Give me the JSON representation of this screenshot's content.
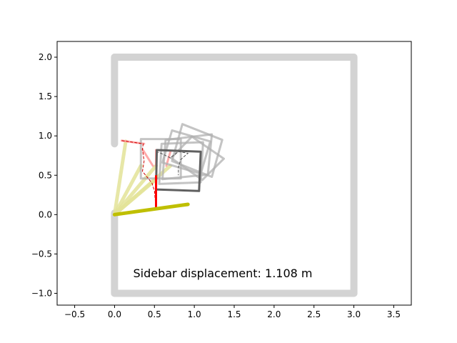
{
  "chart_data": {
    "type": "line",
    "title": "",
    "xlabel": "",
    "ylabel": "",
    "xlim": [
      -0.72,
      3.72
    ],
    "ylim": [
      -1.15,
      2.2
    ],
    "grid": false,
    "x_ticks": [
      -0.5,
      0.0,
      0.5,
      1.0,
      1.5,
      2.0,
      2.5,
      3.0,
      3.5
    ],
    "x_tick_labels": [
      "−0.5",
      "0.0",
      "0.5",
      "1.0",
      "1.5",
      "2.0",
      "2.5",
      "3.0",
      "3.5"
    ],
    "y_ticks": [
      -1.0,
      -0.5,
      0.0,
      0.5,
      1.0,
      1.5,
      2.0
    ],
    "y_tick_labels": [
      "−1.0",
      "−0.5",
      "0.0",
      "0.5",
      "1.0",
      "1.5",
      "2.0"
    ],
    "annotation": "Sidebar displacement: 1.108 m",
    "colors": {
      "wall": "#d3d3d3",
      "box_current": "#606060",
      "box_ghost": "#b0b0b0",
      "boom_current": "#bfbf00",
      "boom_ghost": "#e3e398",
      "arm_current": "#ff0000",
      "arm_ghost": "#ff9a9a",
      "trajectory": "#cc0000",
      "box_trajectory": "#555555"
    },
    "walls": [
      {
        "name": "wall-left-upper",
        "points": [
          [
            0.0,
            0.9
          ],
          [
            0.0,
            2.0
          ]
        ]
      },
      {
        "name": "wall-top",
        "points": [
          [
            0.0,
            2.0
          ],
          [
            3.0,
            2.0
          ]
        ]
      },
      {
        "name": "wall-right",
        "points": [
          [
            3.0,
            2.0
          ],
          [
            3.0,
            -1.0
          ]
        ]
      },
      {
        "name": "wall-bottom",
        "points": [
          [
            3.0,
            -1.0
          ],
          [
            0.0,
            -1.0
          ]
        ]
      },
      {
        "name": "wall-left-lower",
        "points": [
          [
            0.0,
            -1.0
          ],
          [
            0.0,
            0.02
          ]
        ]
      }
    ],
    "boom_current": {
      "points": [
        [
          0.0,
          0.0
        ],
        [
          0.92,
          0.13
        ]
      ]
    },
    "boom_ghosts": [
      {
        "points": [
          [
            0.0,
            0.0
          ],
          [
            0.14,
            0.93
          ]
        ]
      },
      {
        "points": [
          [
            0.0,
            0.0
          ],
          [
            0.33,
            0.62
          ]
        ]
      },
      {
        "points": [
          [
            0.0,
            0.0
          ],
          [
            0.52,
            0.62
          ]
        ]
      },
      {
        "points": [
          [
            0.0,
            0.0
          ],
          [
            0.7,
            0.62
          ]
        ]
      },
      {
        "points": [
          [
            0.0,
            0.0
          ],
          [
            0.5,
            0.43
          ]
        ]
      }
    ],
    "arm_current": {
      "points": [
        [
          0.52,
          0.07
        ],
        [
          0.52,
          0.5
        ]
      ]
    },
    "arm_ghosts": [
      {
        "points": [
          [
            0.09,
            0.94
          ],
          [
            0.37,
            0.9
          ]
        ]
      },
      {
        "points": [
          [
            0.35,
            0.83
          ],
          [
            0.48,
            0.62
          ]
        ]
      },
      {
        "points": [
          [
            0.52,
            0.62
          ],
          [
            0.52,
            0.82
          ]
        ]
      },
      {
        "points": [
          [
            0.65,
            0.62
          ],
          [
            0.7,
            0.8
          ]
        ]
      }
    ],
    "box_current": {
      "points": [
        [
          0.53,
          0.82
        ],
        [
          1.08,
          0.8
        ],
        [
          1.06,
          0.3
        ],
        [
          0.52,
          0.32
        ]
      ]
    },
    "box_ghosts": [
      {
        "points": [
          [
            0.33,
            0.96
          ],
          [
            0.83,
            0.96
          ],
          [
            0.83,
            0.46
          ],
          [
            0.33,
            0.46
          ]
        ]
      },
      {
        "points": [
          [
            0.59,
            0.9
          ],
          [
            1.11,
            0.92
          ],
          [
            1.08,
            0.41
          ],
          [
            0.56,
            0.39
          ]
        ]
      },
      {
        "points": [
          [
            0.64,
            0.95
          ],
          [
            1.22,
            1.02
          ],
          [
            1.17,
            0.51
          ],
          [
            0.6,
            0.45
          ]
        ]
      },
      {
        "points": [
          [
            0.72,
            1.07
          ],
          [
            1.2,
            0.93
          ],
          [
            1.08,
            0.52
          ],
          [
            0.6,
            0.66
          ]
        ]
      },
      {
        "points": [
          [
            0.85,
            1.15
          ],
          [
            1.35,
            0.95
          ],
          [
            1.22,
            0.48
          ],
          [
            0.72,
            0.68
          ]
        ]
      },
      {
        "points": [
          [
            0.97,
            0.99
          ],
          [
            1.37,
            0.71
          ],
          [
            1.1,
            0.44
          ],
          [
            0.71,
            0.72
          ]
        ]
      }
    ],
    "arm_tip_trajectory": {
      "points": [
        [
          0.09,
          0.94
        ],
        [
          0.36,
          0.9
        ],
        [
          0.35,
          0.83
        ],
        [
          0.37,
          0.68
        ],
        [
          0.35,
          0.55
        ],
        [
          0.47,
          0.4
        ],
        [
          0.5,
          0.3
        ],
        [
          0.52,
          0.07
        ]
      ]
    },
    "box_trajectory": {
      "points": [
        [
          0.52,
          0.8
        ],
        [
          0.58,
          0.78
        ],
        [
          0.7,
          0.72
        ],
        [
          0.8,
          0.8
        ],
        [
          0.92,
          0.78
        ],
        [
          0.83,
          0.7
        ],
        [
          0.8,
          0.6
        ],
        [
          0.8,
          0.5
        ]
      ]
    }
  }
}
